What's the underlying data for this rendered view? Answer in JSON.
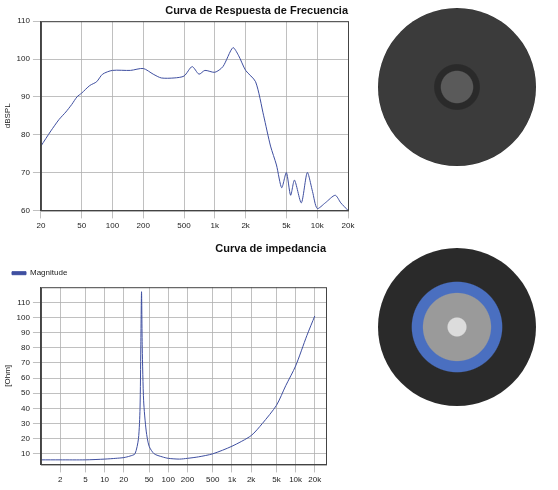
{
  "chart_data": [
    {
      "type": "line",
      "title": "Curva de Respuesta de Frecuencia",
      "y_label": "dBSPL",
      "log": "x",
      "grid": true,
      "color": "#3f4fa0",
      "x": [
        20,
        25,
        30,
        35,
        40,
        45,
        50,
        60,
        70,
        80,
        100,
        150,
        200,
        250,
        300,
        400,
        500,
        600,
        700,
        800,
        1000,
        1200,
        1500,
        1700,
        2000,
        2500,
        3000,
        3500,
        4000,
        4500,
        5000,
        5500,
        6000,
        7000,
        8000,
        9000,
        10000,
        12000,
        15000,
        17000,
        20000
      ],
      "values": [
        77,
        81,
        84,
        86,
        88,
        90,
        91,
        93,
        94,
        96,
        97,
        97,
        97.5,
        96,
        95,
        95,
        95.5,
        98,
        96,
        97,
        96.5,
        98,
        103,
        101,
        97,
        94,
        85,
        77,
        72,
        66,
        70,
        64,
        68,
        62,
        70,
        65,
        60.5,
        62,
        64,
        62,
        60
      ],
      "xlim": [
        20,
        20000
      ],
      "xticks": [
        20,
        50,
        100,
        200,
        500,
        {
          "value": 1000,
          "label": "1k"
        },
        {
          "value": 2000,
          "label": "2k"
        },
        {
          "value": 5000,
          "label": "5k"
        },
        {
          "value": 10000,
          "label": "10k"
        },
        {
          "value": 20000,
          "label": "20k"
        }
      ],
      "ylim": [
        60,
        110
      ],
      "yticks": [
        60,
        70,
        80,
        90,
        100,
        110
      ]
    },
    {
      "type": "line",
      "title": "Curva de impedancia",
      "y_label": "[Ohm]",
      "log": "x",
      "grid": true,
      "legend": "top-left",
      "x": [
        1,
        2,
        5,
        10,
        15,
        20,
        25,
        30,
        34,
        36,
        37,
        38,
        39,
        41,
        45,
        50,
        60,
        80,
        100,
        150,
        200,
        300,
        500,
        1000,
        2000,
        3000,
        5000,
        7000,
        10000,
        15000,
        20000
      ],
      "series": [
        {
          "name": "Magnitude",
          "color": "#3f4fa0",
          "values": [
            6,
            6,
            6,
            6.5,
            7,
            7.5,
            8.5,
            10,
            20,
            40,
            80,
            117,
            80,
            45,
            25,
            15,
            10,
            8,
            7,
            6.5,
            7,
            8,
            10,
            15,
            22,
            30,
            42,
            55,
            68,
            88,
            101
          ]
        }
      ],
      "xlim": [
        1,
        30000
      ],
      "xticks": [
        2,
        5,
        10,
        20,
        50,
        100,
        200,
        500,
        {
          "value": 1000,
          "label": "1k"
        },
        {
          "value": 2000,
          "label": "2k"
        },
        {
          "value": 5000,
          "label": "5k"
        },
        {
          "value": 10000,
          "label": "10k"
        },
        {
          "value": 20000,
          "label": "20k"
        }
      ],
      "ylim": [
        3,
        120
      ],
      "yticks": [
        10,
        20,
        30,
        40,
        50,
        60,
        70,
        80,
        90,
        100,
        110
      ]
    }
  ]
}
